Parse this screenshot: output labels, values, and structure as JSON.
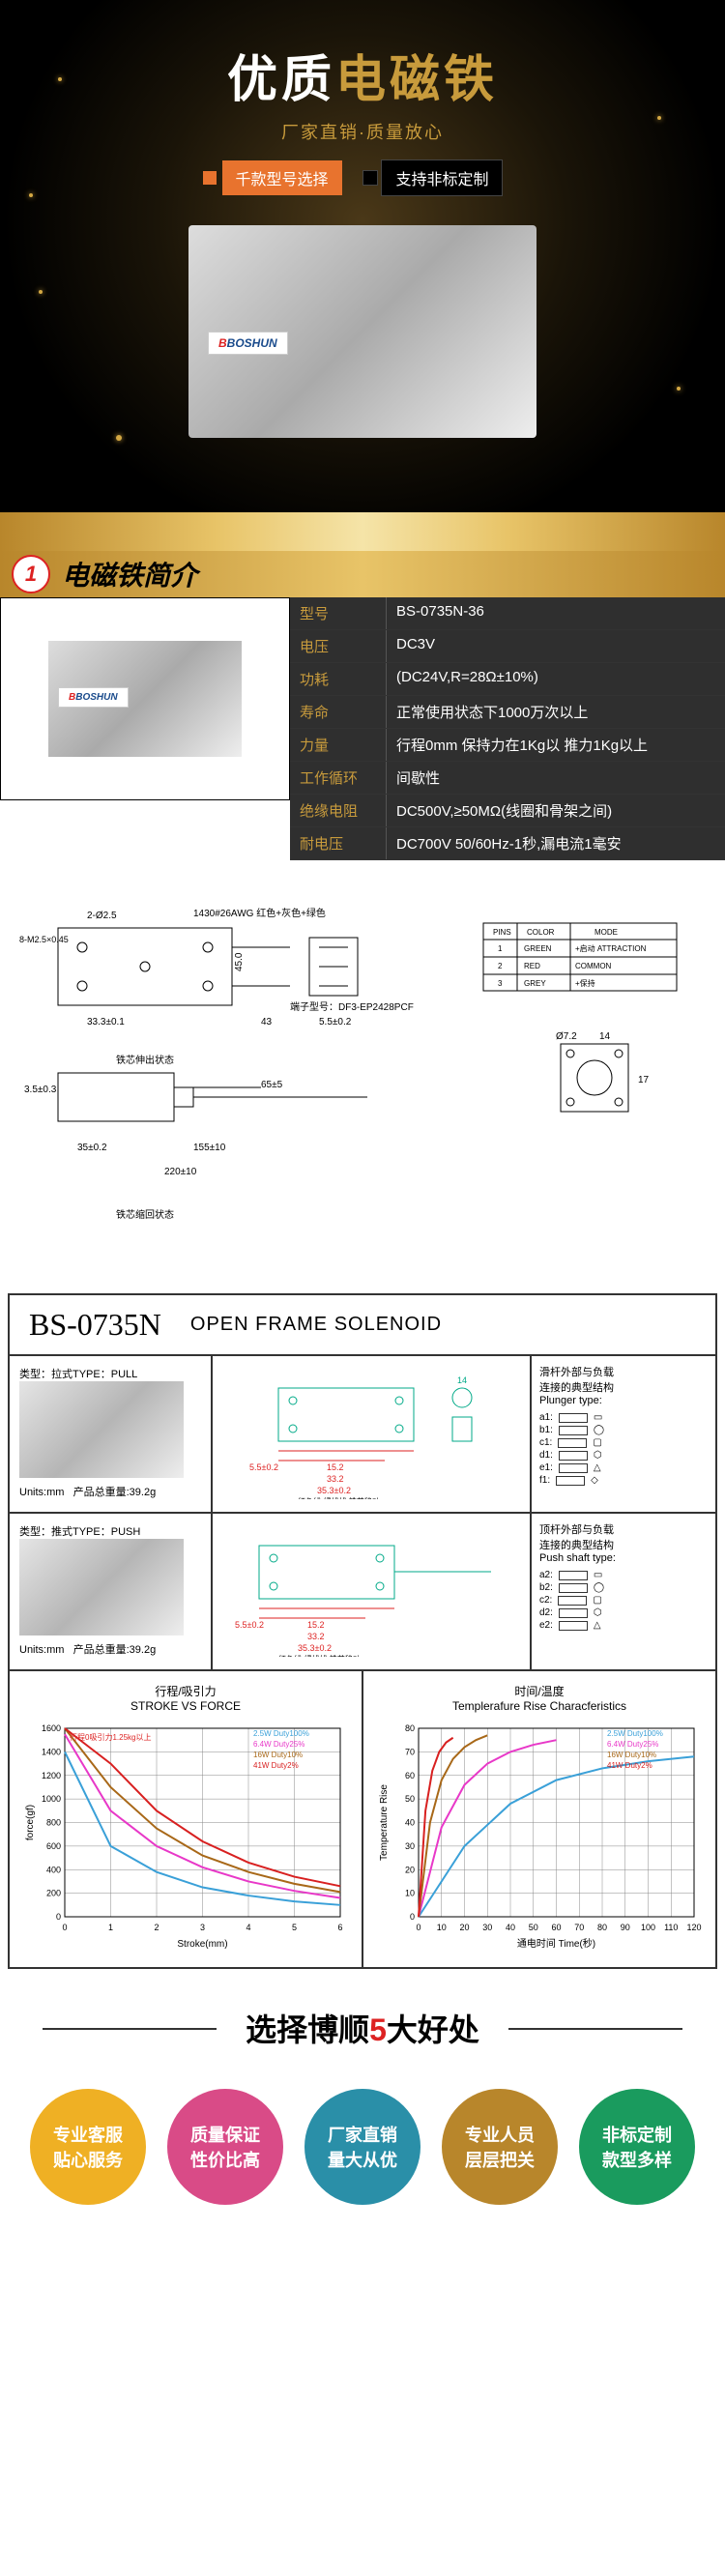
{
  "hero": {
    "title_1": "优质",
    "title_2": "电磁铁",
    "subtitle": "厂家直销·质量放心",
    "tag_orange": "千款型号选择",
    "tag_black": "支持非标定制",
    "product_brand": "BOSHUN"
  },
  "section1": {
    "num": "1",
    "title": "电磁铁简介"
  },
  "specs": {
    "rows": [
      {
        "label": "型号",
        "value": "BS-0735N-36"
      },
      {
        "label": "电压",
        "value": "DC3V"
      },
      {
        "label": "功耗",
        "value": "(DC24V,R=28Ω±10%)"
      },
      {
        "label": "寿命",
        "value": "正常使用状态下1000万次以上"
      },
      {
        "label": "力量",
        "value": "行程0mm 保持力在1Kg以 推力1Kg以上"
      },
      {
        "label": "工作循环",
        "value": "间歇性"
      },
      {
        "label": "绝缘电阻",
        "value": "DC500V,≥50MΩ(线圈和骨架之间)"
      },
      {
        "label": "耐电压",
        "value": "DC700V 50/60Hz-1秒,漏电流1毫安"
      }
    ]
  },
  "drawing": {
    "wire_spec": "1430#26AWG 红色+灰色+绿色",
    "connector": "端子型号：DF3-EP2428PCF",
    "state_extend": "铁芯伸出状态",
    "state_retract": "铁芯缩回状态",
    "dims": {
      "d1": "2-Ø2.5",
      "d2": "8-M2.5×0.45",
      "d3": "33.3±0.1",
      "d4": "45.0",
      "d5": "5.5±0.2",
      "d6": "43",
      "d7": "3.5±0.3",
      "d8": "65±5",
      "d9": "155±10",
      "d10": "35±0.2",
      "d11": "220±10",
      "d12": "5.5±0.2",
      "d13": "Ø7.2",
      "d14": "14",
      "d15": "17"
    },
    "pin_table": {
      "headers": [
        "PINS",
        "COLOR",
        "MODE"
      ],
      "rows": [
        [
          "1",
          "GREEN",
          "+启动 ATTRACTION"
        ],
        [
          "2",
          "RED",
          "COMMON"
        ],
        [
          "3",
          "GREY",
          "+保持"
        ]
      ]
    }
  },
  "datasheet": {
    "model": "BS-0735N",
    "type_label": "OPEN FRAME SOLENOID",
    "pull": {
      "type_label": "类型：拉式TYPE：PULL",
      "units": "Units:mm",
      "weight": "产品总重量:39.2g",
      "plunger_title": "滑杆外部与负载\n连接的典型结构\nPlunger type:",
      "plunger_items": [
        "a1:",
        "b1:",
        "c1:",
        "d1:",
        "e1:",
        "f1:"
      ]
    },
    "push": {
      "type_label": "类型：推式TYPE：PUSH",
      "units": "Units:mm",
      "weight": "产品总重量:39.2g",
      "shaft_title": "顶杆外部与负载\n连接的典型结构\nPush shaft type:",
      "shaft_items": [
        "a2:",
        "b2:",
        "c2:",
        "d2:",
        "e2:"
      ]
    },
    "dims": {
      "d1": "5.5±0.2",
      "d2": "15.2",
      "d3": "33.2",
      "d4": "35.3±0.2",
      "d5": "14"
    },
    "dim_legend": "红色线-绿线线 铁芯移动",
    "chart1": {
      "title_cn": "行程/吸引力",
      "title_en": "STROKE VS FORCE",
      "note": "行程0吸引力1.25kg以上",
      "xlabel": "Stroke(mm)",
      "ylabel": "force(gf)",
      "xlim": [
        0,
        6
      ],
      "xtick_step": 1,
      "ylim": [
        0,
        1600
      ],
      "ytick_step": 200,
      "grid_color": "#888",
      "series": [
        {
          "label": "2.5W Duty100%",
          "color": "#3aa0d8",
          "width": 2,
          "points": [
            [
              0,
              1400
            ],
            [
              1,
              600
            ],
            [
              2,
              380
            ],
            [
              3,
              250
            ],
            [
              4,
              180
            ],
            [
              5,
              130
            ],
            [
              6,
              100
            ]
          ]
        },
        {
          "label": "6.4W Duty25%",
          "color": "#e838c8",
          "width": 2,
          "points": [
            [
              0,
              1550
            ],
            [
              1,
              900
            ],
            [
              2,
              600
            ],
            [
              3,
              420
            ],
            [
              4,
              300
            ],
            [
              5,
              220
            ],
            [
              6,
              160
            ]
          ]
        },
        {
          "label": "16W Duty10%",
          "color": "#a86818",
          "width": 2,
          "points": [
            [
              0,
              1600
            ],
            [
              1,
              1100
            ],
            [
              2,
              750
            ],
            [
              3,
              520
            ],
            [
              4,
              380
            ],
            [
              5,
              280
            ],
            [
              6,
              210
            ]
          ]
        },
        {
          "label": "41W Duty2%",
          "color": "#d82020",
          "width": 2,
          "points": [
            [
              0,
              1600
            ],
            [
              1,
              1300
            ],
            [
              2,
              900
            ],
            [
              3,
              640
            ],
            [
              4,
              460
            ],
            [
              5,
              340
            ],
            [
              6,
              260
            ]
          ]
        }
      ]
    },
    "chart2": {
      "title_cn": "时间/温度",
      "title_en": "Templerafure Rise Characferistics",
      "xlabel": "通电时间 Time(秒)",
      "ylabel": "Temperature Rise",
      "xlim": [
        0,
        120
      ],
      "xtick_step": 10,
      "ylim": [
        0,
        80
      ],
      "ytick_step": 10,
      "grid_color": "#888",
      "series": [
        {
          "label": "2.5W Duty100%",
          "color": "#3aa0d8",
          "width": 2,
          "points": [
            [
              0,
              0
            ],
            [
              20,
              30
            ],
            [
              40,
              48
            ],
            [
              60,
              58
            ],
            [
              80,
              63
            ],
            [
              100,
              66
            ],
            [
              120,
              68
            ]
          ]
        },
        {
          "label": "6.4W Duty25%",
          "color": "#e838c8",
          "width": 2,
          "points": [
            [
              0,
              0
            ],
            [
              10,
              38
            ],
            [
              20,
              56
            ],
            [
              30,
              65
            ],
            [
              40,
              70
            ],
            [
              50,
              73
            ],
            [
              60,
              75
            ]
          ]
        },
        {
          "label": "16W Duty10%",
          "color": "#a86818",
          "width": 2,
          "points": [
            [
              0,
              0
            ],
            [
              5,
              40
            ],
            [
              10,
              58
            ],
            [
              15,
              67
            ],
            [
              20,
              72
            ],
            [
              25,
              75
            ],
            [
              30,
              77
            ]
          ]
        },
        {
          "label": "41W Duty2%",
          "color": "#d82020",
          "width": 2,
          "points": [
            [
              0,
              0
            ],
            [
              3,
              45
            ],
            [
              6,
              62
            ],
            [
              9,
              70
            ],
            [
              12,
              74
            ],
            [
              15,
              76
            ]
          ]
        }
      ]
    }
  },
  "benefits": {
    "title_pre": "选择博顺",
    "title_num": "5",
    "title_post": "大好处",
    "items": [
      {
        "line1": "专业客服",
        "line2": "贴心服务",
        "cls": "c1"
      },
      {
        "line1": "质量保证",
        "line2": "性价比高",
        "cls": "c2"
      },
      {
        "line1": "厂家直销",
        "line2": "量大从优",
        "cls": "c3"
      },
      {
        "line1": "专业人员",
        "line2": "层层把关",
        "cls": "c4"
      },
      {
        "line1": "非标定制",
        "line2": "款型多样",
        "cls": "c5"
      }
    ]
  }
}
